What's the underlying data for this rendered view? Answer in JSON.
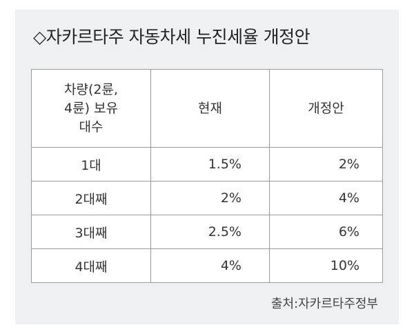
{
  "title": "◇자카르타주 자동차세 누진세율 개정안",
  "table": {
    "header": [
      [
        "차량(2륜,",
        "4륜) 보유",
        "대수"
      ],
      "현재",
      "개정안"
    ],
    "rows": [
      [
        "1대",
        "1.5%",
        "2%"
      ],
      [
        "2대째",
        "2%",
        "4%"
      ],
      [
        "3대째",
        "2.5%",
        "6%"
      ],
      [
        "4대째",
        "4%",
        "10%"
      ]
    ]
  },
  "source": "출처:자카르타주정부"
}
